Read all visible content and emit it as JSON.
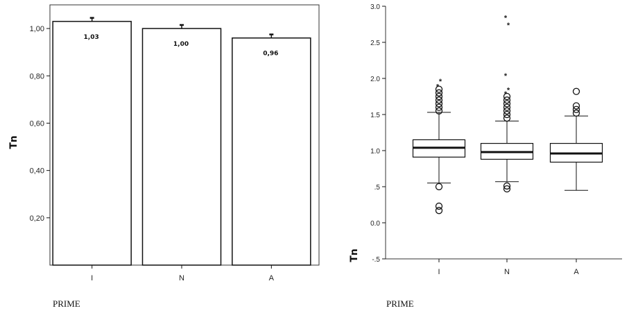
{
  "chart_data": [
    {
      "type": "bar",
      "categories": [
        "I",
        "N",
        "A"
      ],
      "values": [
        1.03,
        1.0,
        0.96
      ],
      "data_labels": [
        "1,03",
        "1,00",
        "0,96"
      ],
      "error_bar_tops": [
        1.045,
        1.015,
        0.975
      ],
      "ylabel": "Tn",
      "xlabel": "PRIME",
      "ylim": [
        0.0,
        1.1
      ],
      "yticks": [
        0.2,
        0.4,
        0.6,
        0.8,
        1.0
      ],
      "ytick_labels": [
        "0,20",
        "0,40",
        "0,60",
        "0,80",
        "1,00"
      ],
      "grid": false,
      "legend": "none"
    },
    {
      "type": "box",
      "categories": [
        "I",
        "N",
        "A"
      ],
      "boxes": [
        {
          "whisker_low": 0.55,
          "q1": 0.91,
          "median": 1.04,
          "q3": 1.15,
          "whisker_high": 1.53,
          "outliers": [
            0.5,
            0.23,
            0.17,
            1.55,
            1.6,
            1.65,
            1.7,
            1.75,
            1.8,
            1.85
          ],
          "extremes": [
            1.9,
            1.97
          ]
        },
        {
          "whisker_low": 0.57,
          "q1": 0.88,
          "median": 0.98,
          "q3": 1.1,
          "whisker_high": 1.41,
          "outliers": [
            0.51,
            0.47,
            1.45,
            1.5,
            1.55,
            1.6,
            1.65,
            1.7,
            1.75
          ],
          "extremes": [
            1.8,
            1.85,
            2.05,
            2.75,
            2.85
          ]
        },
        {
          "whisker_low": 0.45,
          "q1": 0.84,
          "median": 0.96,
          "q3": 1.1,
          "whisker_high": 1.48,
          "outliers": [
            1.52,
            1.57,
            1.62,
            1.82
          ],
          "extremes": []
        }
      ],
      "ylabel": "Tn",
      "xlabel": "PRIME",
      "ylim": [
        -0.5,
        3.0
      ],
      "yticks": [
        -0.5,
        0.0,
        0.5,
        1.0,
        1.5,
        2.0,
        2.5,
        3.0
      ],
      "ytick_labels": [
        "-.5",
        "0.0",
        ".5",
        "1.0",
        "1.5",
        "2.0",
        "2.5",
        "3.0"
      ],
      "grid": false,
      "legend": "none"
    }
  ],
  "footer": {
    "left_label": "PRIME",
    "right_label": "PRIME"
  },
  "colors": {
    "ink": "#111111",
    "bar_fill": "#ffffff",
    "frame": "#333333"
  }
}
